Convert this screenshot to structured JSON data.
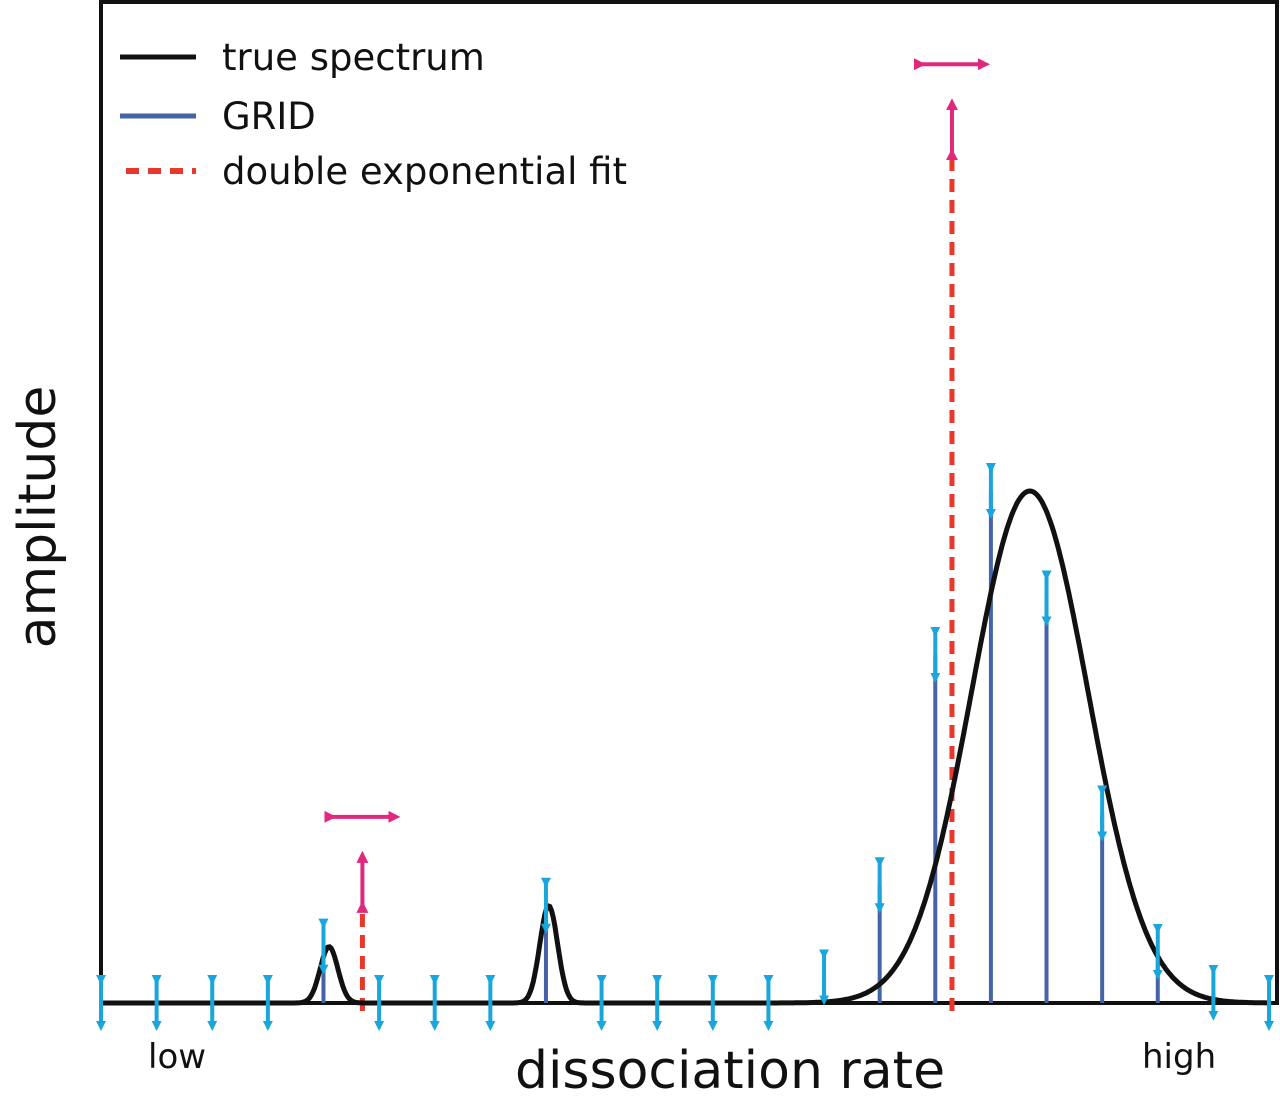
{
  "legend": {
    "true_spectrum": "true spectrum",
    "grid": "GRID",
    "fit": "double exponential fit"
  },
  "axes": {
    "x_title": "dissociation rate",
    "y_title": "amplitude",
    "x_low": "low",
    "x_high": "high"
  },
  "colors": {
    "true_spectrum": "#111111",
    "grid": "#4763a8",
    "fit": "#e8372b",
    "grid_arrow": "#1aa6dc",
    "fit_arrow": "#e0287d",
    "frame": "#111111"
  },
  "chart_data": {
    "type": "line",
    "x_range": [
      0,
      21
    ],
    "y_range": [
      0,
      1
    ],
    "true_spectrum_peaks": [
      {
        "center": 4.1,
        "width": 0.16,
        "height": 0.11
      },
      {
        "center": 8.05,
        "width": 0.16,
        "height": 0.19
      },
      {
        "center": 16.7,
        "width": 1.05,
        "height": 1.0
      }
    ],
    "grid_x": [
      0,
      1,
      2,
      3,
      4,
      5,
      6,
      7,
      8,
      9,
      10,
      11,
      12,
      13,
      14,
      15,
      16,
      17,
      18,
      19,
      20,
      21
    ],
    "grid_amplitudes": [
      0,
      0,
      0,
      0,
      0.11,
      0,
      0,
      0,
      0.19,
      0,
      0,
      0,
      0,
      0.05,
      0.23,
      0.68,
      1.0,
      0.79,
      0.37,
      0.1,
      0.02,
      0
    ],
    "fit_components": [
      {
        "x": 4.7,
        "amplitude": 0.18
      },
      {
        "x": 15.3,
        "amplitude": 1.65
      }
    ]
  }
}
